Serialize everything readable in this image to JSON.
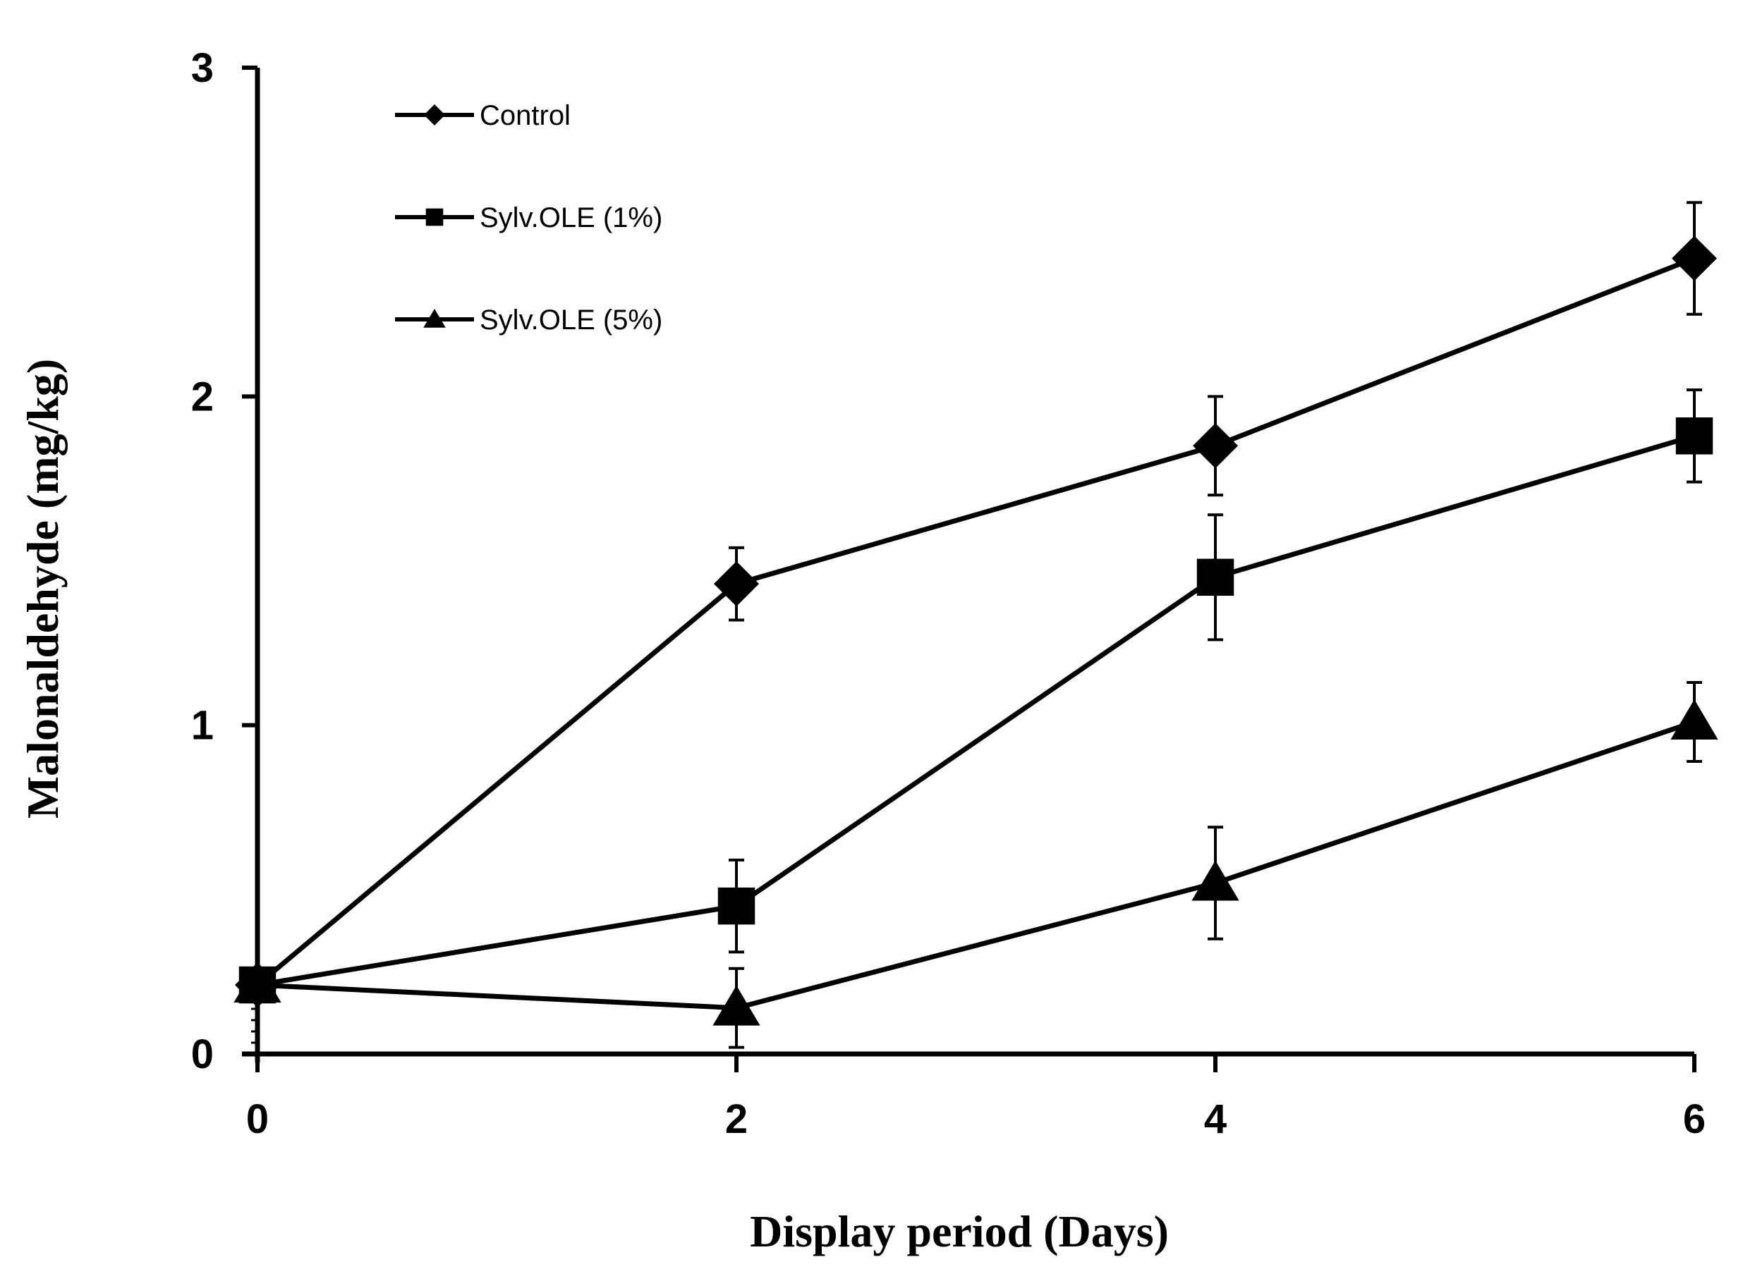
{
  "chart_data": {
    "type": "line",
    "title": "",
    "xlabel": "Display period (Days)",
    "ylabel": "Malonaldehyde (mg/kg)",
    "xlim": [
      0,
      6
    ],
    "ylim": [
      0,
      3
    ],
    "x_ticks": [
      0,
      2,
      4,
      6
    ],
    "x_tick_labels": [
      "0",
      "2",
      "4",
      "6"
    ],
    "y_ticks": [
      0,
      1,
      2,
      3
    ],
    "y_tick_labels": [
      "0",
      "1",
      "2",
      "3"
    ],
    "grid": false,
    "legend_position": "top-left",
    "x": [
      0,
      2,
      4,
      6
    ],
    "series": [
      {
        "name": "Control",
        "marker": "diamond",
        "values": [
          0.21,
          1.43,
          1.85,
          2.42
        ],
        "error": [
          0.05,
          0.11,
          0.15,
          0.17
        ]
      },
      {
        "name": "Sylv.OLE (1%)",
        "marker": "square",
        "values": [
          0.21,
          0.45,
          1.45,
          1.88
        ],
        "error": [
          0.05,
          0.14,
          0.19,
          0.14
        ]
      },
      {
        "name": "Sylv.OLE (5%)",
        "marker": "triangle",
        "values": [
          0.21,
          0.14,
          0.52,
          1.01
        ],
        "error": [
          0.05,
          0.12,
          0.17,
          0.12
        ]
      }
    ]
  }
}
